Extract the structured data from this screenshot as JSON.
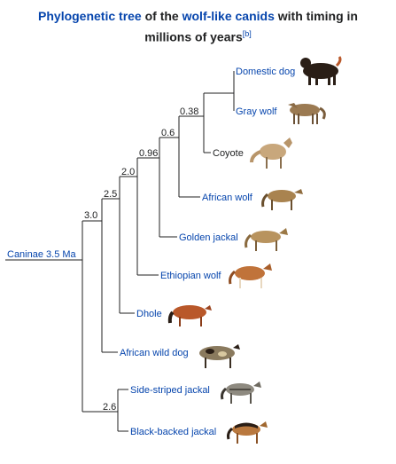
{
  "title": {
    "part1": "Phylogenetic tree",
    "part2": " of the ",
    "part3": "wolf-like canids",
    "part4": " with timing in",
    "part5": "millions of years",
    "ref": "[b]"
  },
  "root": {
    "label": "Caninae 3.5 Ma"
  },
  "nodes": {
    "n38": "0.38",
    "n06": "0.6",
    "n096": "0.96",
    "n20": "2.0",
    "n25": "2.5",
    "n30": "3.0",
    "n26": "2.6"
  },
  "taxa": {
    "domestic_dog": "Domestic dog",
    "gray_wolf": "Gray wolf",
    "coyote": "Coyote",
    "african_wolf": "African wolf",
    "golden_jackal": "Golden jackal",
    "ethiopian_wolf": "Ethiopian wolf",
    "dhole": "Dhole",
    "african_wild_dog": "African wild dog",
    "side_striped_jackal": "Side-striped jackal",
    "black_backed_jackal": "Black-backed jackal"
  },
  "colors": {
    "link": "#0645ad",
    "text": "#202122",
    "coat_tan": "#a9834f",
    "coat_dark": "#2a1e16",
    "coat_red": "#b9582a"
  }
}
